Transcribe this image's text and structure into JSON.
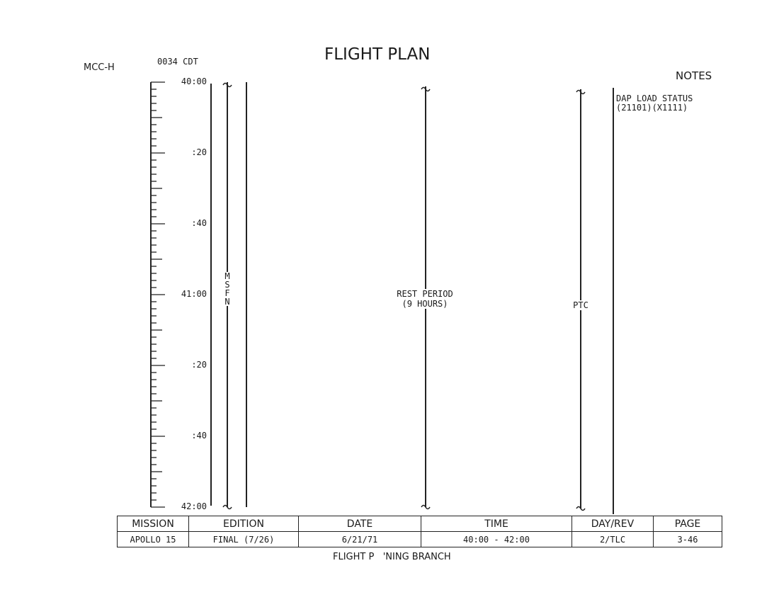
{
  "header": {
    "center": "MCC-H",
    "time": "0034 CDT",
    "title": "FLIGHT PLAN",
    "notes_heading": "NOTES"
  },
  "timeline": {
    "labels": [
      "40:00",
      ":20",
      ":40",
      "41:00",
      ":20",
      ":40",
      "42:00"
    ],
    "msfn_letters": [
      "M",
      "S",
      "F",
      "N"
    ],
    "rest_period": [
      "REST PERIOD",
      "(9 HOURS)"
    ],
    "ptc": "PTC"
  },
  "notes": [
    "DAP LOAD STATUS",
    "(21101)(X1111)"
  ],
  "footer": {
    "headers": [
      "MISSION",
      "EDITION",
      "DATE",
      "TIME",
      "DAY/REV",
      "PAGE"
    ],
    "values": [
      "APOLLO 15",
      "FINAL (7/26)",
      "6/21/71",
      "40:00 - 42:00",
      "2/TLC",
      "3-46"
    ],
    "branch": "FLIGHT P   'NING BRANCH"
  }
}
